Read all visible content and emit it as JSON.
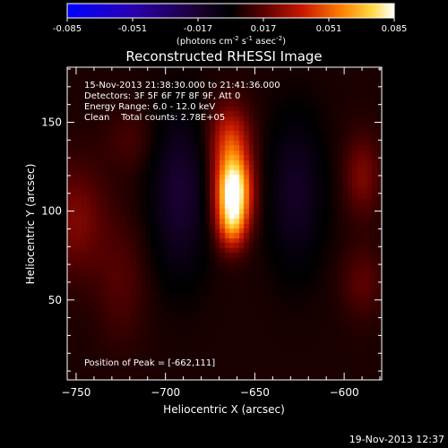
{
  "colorbar": {
    "min": -0.085,
    "max": 0.085,
    "tick_labels": [
      "-0.085",
      "-0.051",
      "-0.017",
      "0.017",
      "0.051",
      "0.085"
    ],
    "unit_text": "(photons cm",
    "unit_exp1": "-2",
    "unit_mid": " s",
    "unit_exp2": "-1",
    "unit_mid2": " asec",
    "unit_exp3": "-2",
    "unit_close": ")"
  },
  "title": "Reconstructed RHESSI Image",
  "info": {
    "line1": "15-Nov-2013 21:38:30.000 to 21:41:36.000",
    "line2": "Detectors: 3F 5F 6F 7F 8F 9F, Att 0",
    "line3": "Energy Range: 6.0 - 12.0 keV",
    "line4": "Clean    Total counts: 2.78E+05",
    "peak": "Position of Peak = [-662,111]"
  },
  "footer_date": "19-Nov-2013 12:37",
  "chart_data": {
    "type": "heatmap",
    "title": "Reconstructed RHESSI Image",
    "xlabel": "Heliocentric X (arcsec)",
    "ylabel": "Heliocentric Y (arcsec)",
    "xlim": [
      -755,
      -579
    ],
    "ylim": [
      5,
      181
    ],
    "x_ticks": [
      -750,
      -700,
      -650,
      -600
    ],
    "x_tick_labels": [
      "−750",
      "−700",
      "−650",
      "−600"
    ],
    "y_ticks": [
      50,
      100,
      150
    ],
    "y_tick_labels": [
      "50",
      "100",
      "150"
    ],
    "colormap": "hot-blue",
    "value_range": [
      -0.085,
      0.085
    ],
    "peak_position": [
      -662,
      111
    ],
    "peak_value": 0.085,
    "sources": [
      {
        "x": -662,
        "y": 111,
        "sx": 7,
        "sy": 14,
        "amp": 0.085
      },
      {
        "x": -663,
        "y": 91,
        "sx": 6,
        "sy": 10,
        "amp": 0.035
      },
      {
        "x": -664,
        "y": 140,
        "sx": 8,
        "sy": 14,
        "amp": 0.035
      },
      {
        "x": -692,
        "y": 110,
        "sx": 11,
        "sy": 32,
        "amp": -0.022
      },
      {
        "x": -627,
        "y": 110,
        "sx": 11,
        "sy": 30,
        "amp": -0.018
      },
      {
        "x": -750,
        "y": 95,
        "sx": 12,
        "sy": 22,
        "amp": 0.018
      },
      {
        "x": -725,
        "y": 60,
        "sx": 10,
        "sy": 24,
        "amp": 0.01
      },
      {
        "x": -590,
        "y": 120,
        "sx": 7,
        "sy": 16,
        "amp": 0.018
      },
      {
        "x": -590,
        "y": 60,
        "sx": 8,
        "sy": 14,
        "amp": 0.012
      },
      {
        "x": -720,
        "y": 140,
        "sx": 10,
        "sy": 12,
        "amp": 0.008
      }
    ],
    "background": 0.005
  }
}
